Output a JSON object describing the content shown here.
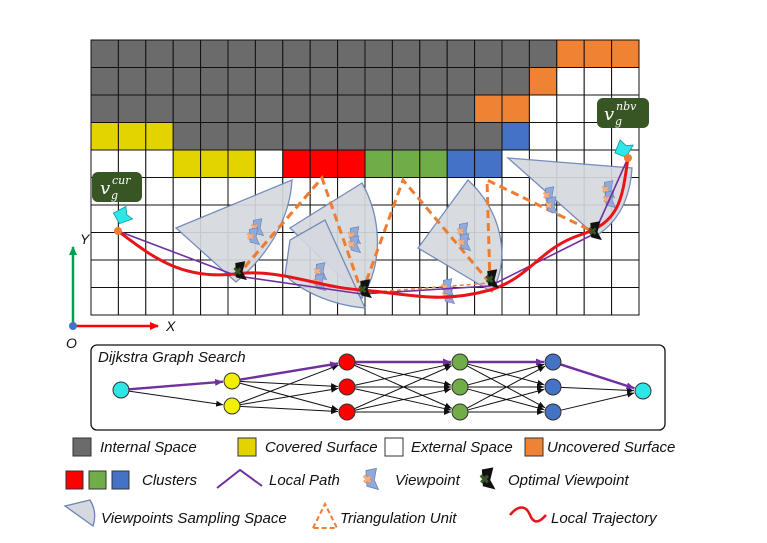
{
  "grid": {
    "cols": 20,
    "rows": 10,
    "colors": {
      "internal": "#6b6b6b",
      "covered": "#e3d400",
      "uncovered": "#ef8333",
      "external": "#ffffff",
      "cluster_red": "#ff0000",
      "cluster_green": "#70ad47",
      "cluster_blue": "#4472c4"
    }
  },
  "viewpoint_labels": {
    "current": "v_g^cur",
    "current_base": "v",
    "current_sub": "g",
    "current_sup": "cur",
    "nbv_base": "v",
    "nbv_sub": "g",
    "nbv_sup": "nbv"
  },
  "axes": {
    "x_label": "X",
    "y_label": "Y",
    "origin_label": "O"
  },
  "dijkstra": {
    "title": "Dijkstra Graph Search",
    "node_colors": {
      "start": "#2ee6e6",
      "covered": "#f0f000",
      "red": "#ff0000",
      "green": "#70ad47",
      "blue": "#4472c4",
      "end": "#2ee6e6"
    },
    "path_color": "#7030a0"
  },
  "legend": {
    "internal_space": "Internal Space",
    "covered_surface": "Covered Surface",
    "external_space": "External Space",
    "uncovered_surface": "Uncovered Surface",
    "clusters": "Clusters",
    "local_path": "Local Path",
    "viewpoint": "Viewpoint",
    "optimal_viewpoint": "Optimal Viewpoint",
    "sampling_space": "Viewpoints Sampling Space",
    "triangulation_unit": "Triangulation Unit",
    "local_trajectory": "Local Trajectory"
  },
  "colors": {
    "trajectory": "#e8141a",
    "local_path": "#7030a0",
    "triangulation": "#ed7d31",
    "sampling_fill": "#d5d8de",
    "sampling_stroke": "#6b84b8",
    "viewpoint_label_bg": "#375623",
    "axis_x": "#ff0000",
    "axis_y": "#00a050",
    "origin": "#4472c4"
  }
}
